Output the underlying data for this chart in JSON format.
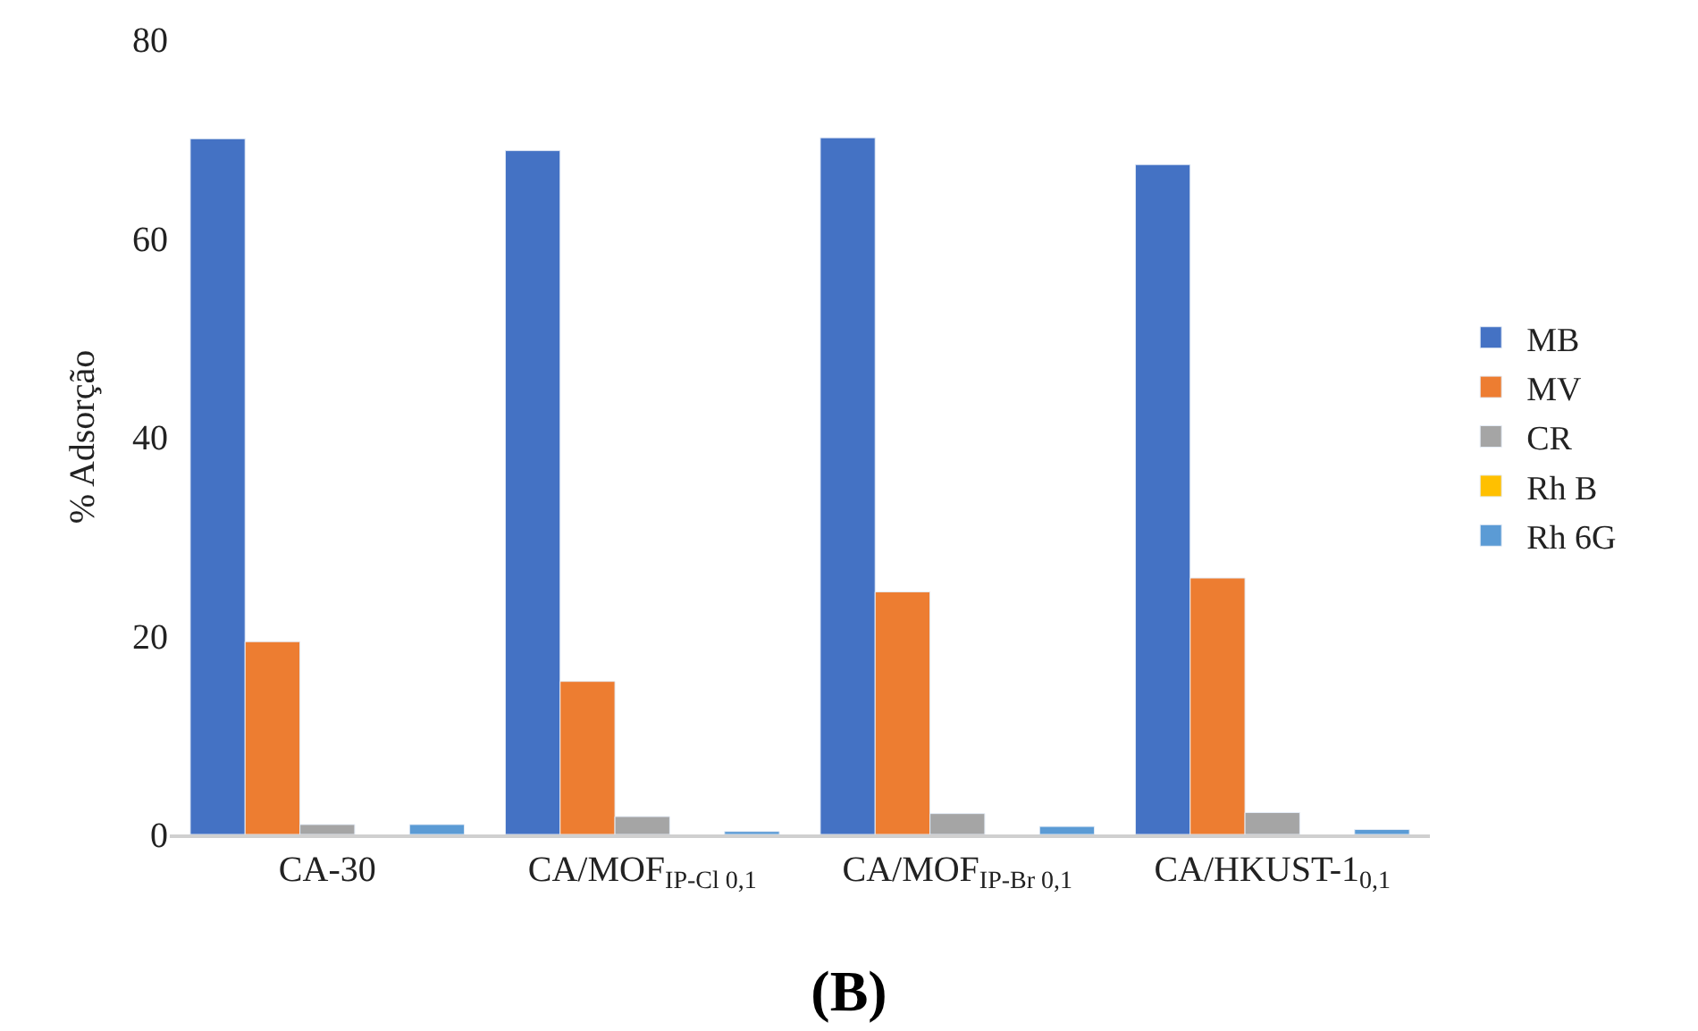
{
  "chart_data": {
    "type": "bar",
    "title": "(B)",
    "ylabel": "% Adsorção",
    "categories": [
      "CA-30",
      "CA/MOF$_{IP-Cl 0,1}$",
      "CA/MOF$_{IP-Br 0,1}$",
      "CA/HKUST-1$_{0,1}$"
    ],
    "series": [
      {
        "name": "MB",
        "color": "#4472c4",
        "values": [
          70.0,
          68.8,
          70.1,
          67.4
        ]
      },
      {
        "name": "MV",
        "color": "#ed7d31",
        "values": [
          19.4,
          15.4,
          24.4,
          25.8
        ]
      },
      {
        "name": "CR",
        "color": "#a5a5a5",
        "values": [
          1.0,
          1.8,
          2.1,
          2.2
        ]
      },
      {
        "name": "Rh B",
        "color": "#ffc000",
        "values": [
          null,
          null,
          null,
          null
        ]
      },
      {
        "name": "Rh 6G",
        "color": "#5b9bd5",
        "values": [
          1.0,
          0.3,
          0.8,
          0.5
        ]
      }
    ],
    "ylim": [
      0,
      80
    ],
    "yticks": [
      0,
      20,
      40,
      60,
      80
    ],
    "grid": false,
    "legend": "right"
  }
}
